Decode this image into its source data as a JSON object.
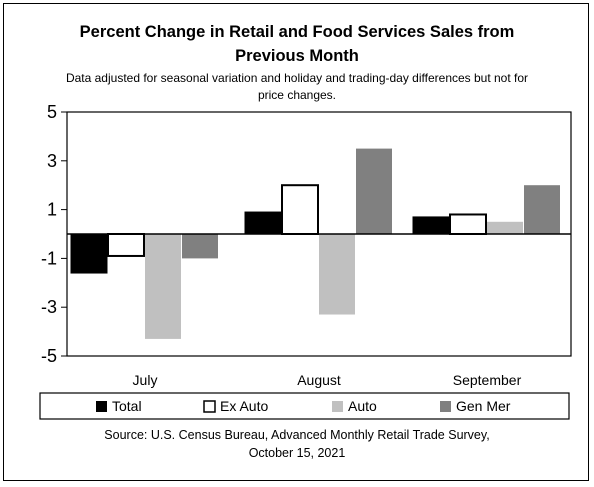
{
  "chart_data": {
    "type": "bar",
    "title_line1": "Percent Change in Retail and Food Services Sales from",
    "title_line2": "Previous Month",
    "subtitle_line1": "Data adjusted for seasonal variation and holiday and trading-day differences but not for",
    "subtitle_line2": "price changes.",
    "categories": [
      "July",
      "August",
      "September"
    ],
    "series": [
      {
        "name": "Total",
        "values": [
          -1.6,
          0.9,
          0.7
        ],
        "color": "#000000"
      },
      {
        "name": "Ex Auto",
        "values": [
          -0.9,
          2.0,
          0.8
        ],
        "color": "#ffffff"
      },
      {
        "name": "Auto",
        "values": [
          -4.3,
          -3.3,
          0.5
        ],
        "color": "#c0c0c0"
      },
      {
        "name": "Gen Mer",
        "values": [
          -1.0,
          3.5,
          2.0
        ],
        "color": "#808080"
      }
    ],
    "ylim": [
      -5,
      5
    ],
    "yticks": [
      "5",
      "3",
      "1",
      "-1",
      "-3",
      "-5"
    ],
    "ytick_values": [
      5,
      3,
      1,
      -1,
      -3,
      -5
    ],
    "legend_position": "bottom",
    "grid": false
  },
  "source_line1": "Source: U.S. Census Bureau, Advanced Monthly Retail Trade Survey,",
  "source_line2": "October 15, 2021"
}
